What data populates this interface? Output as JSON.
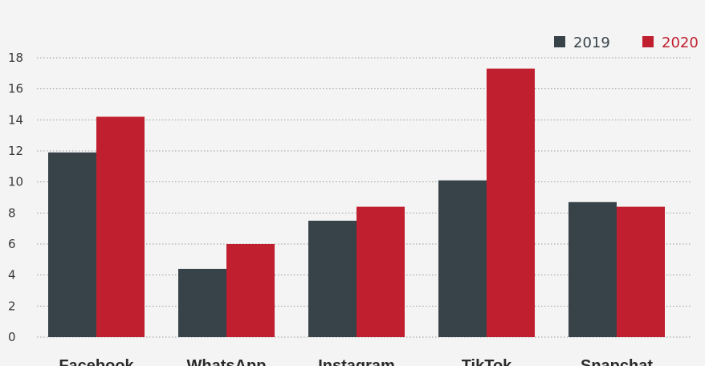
{
  "chart_data": {
    "type": "bar",
    "title": "",
    "xlabel": "",
    "ylabel": "",
    "ylim": [
      0,
      18
    ],
    "yticks": [
      0,
      2,
      4,
      6,
      8,
      10,
      12,
      14,
      16,
      18
    ],
    "grid": true,
    "legend_position": "top-right",
    "categories": [
      "Facebook",
      "WhatsApp",
      "Instagram",
      "TikTok",
      "Snapchat"
    ],
    "series": [
      {
        "name": "2019",
        "color": "#384349",
        "values": [
          11.9,
          4.4,
          7.5,
          10.1,
          8.7
        ]
      },
      {
        "name": "2020",
        "color": "#c01f2f",
        "values": [
          14.2,
          6.0,
          8.4,
          17.3,
          8.4
        ]
      }
    ]
  },
  "colors": {
    "background": "#f4f4f4",
    "grid": "#9a9a9a",
    "axis_text": "#3a3a3a",
    "title": "#c01f2f"
  }
}
